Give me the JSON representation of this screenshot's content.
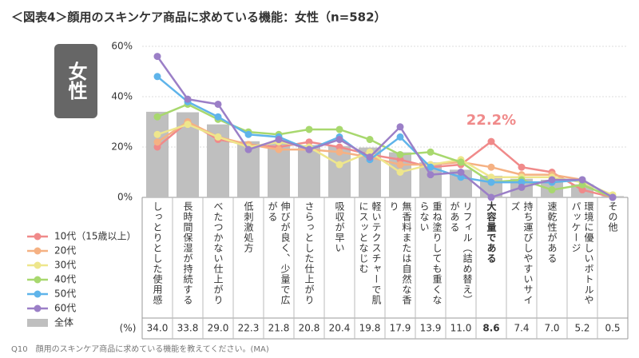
{
  "chart_data": {
    "type": "bar_line",
    "title": "＜図表4＞顔用のスキンケア商品に求めている機能：女性（n=582）",
    "badge": "女性",
    "unit_label": "(%)",
    "footnote": "Q10　顔用のスキンケア商品に求めている機能を教えてください。(MA)",
    "categories": [
      "しっとりとした使用感",
      "長時間保湿が持続する",
      "べたつかない仕上がり",
      "低刺激処方",
      "伸びが良く、少量で広がる",
      "さらっとした仕上がり",
      "吸収が早い",
      "軽いテクスチャーで肌にスッとなじむ",
      "無香料または自然な香り",
      "重ね塗りしても重くならない",
      "リフィル（詰め替え）がある",
      "大容量である",
      "持ち運びしやすいサイズ",
      "速乾性がある",
      "環境に優しいボトルやパッケージ",
      "その他"
    ],
    "bar": {
      "name": "全体",
      "color": "#bfbfbf",
      "values": [
        34.0,
        33.8,
        29.0,
        22.3,
        21.8,
        20.8,
        20.4,
        19.8,
        17.9,
        13.9,
        11.0,
        8.6,
        7.4,
        7.0,
        5.2,
        0.5
      ],
      "value_labels": [
        "34.0",
        "33.8",
        "29.0",
        "22.3",
        "21.8",
        "20.8",
        "20.4",
        "19.8",
        "17.9",
        "13.9",
        "11.0",
        "8.6",
        "7.4",
        "7.0",
        "5.2",
        "0.5"
      ]
    },
    "series": [
      {
        "name": "10代（15歳以上）",
        "color": "#f08a8a",
        "values": [
          20,
          30,
          23,
          21,
          20,
          22,
          20,
          17,
          15,
          12,
          13,
          22.2,
          12,
          10,
          3,
          0
        ]
      },
      {
        "name": "20代",
        "color": "#f5b183",
        "values": [
          22,
          30,
          24,
          21,
          19,
          19,
          18,
          16,
          13,
          13,
          14,
          12,
          9,
          9,
          7,
          0
        ]
      },
      {
        "name": "30代",
        "color": "#eee68c",
        "values": [
          25,
          29,
          24,
          20,
          22,
          20,
          13,
          18,
          10,
          13,
          15,
          8,
          8,
          8,
          6,
          1
        ]
      },
      {
        "name": "40代",
        "color": "#a8d86e",
        "values": [
          32,
          37,
          31,
          26,
          25,
          27,
          27,
          23,
          17,
          18,
          14,
          6,
          7,
          3,
          5,
          0
        ]
      },
      {
        "name": "50代",
        "color": "#5fb4ea",
        "values": [
          48,
          38,
          32,
          25,
          24,
          19,
          24,
          15,
          24,
          12,
          8,
          6,
          6,
          6,
          7,
          0
        ]
      },
      {
        "name": "60代",
        "color": "#9b7fc7",
        "values": [
          56,
          39,
          37,
          19,
          23,
          19,
          23,
          16,
          28,
          9,
          10,
          0,
          4,
          7,
          7,
          0
        ]
      }
    ],
    "annotation": {
      "text": "22.2%",
      "category": "大容量である",
      "series": "10代（15歳以上）",
      "color": "#f08a8a"
    },
    "ylim": [
      0,
      60
    ],
    "yticks": [
      {
        "value": 0,
        "label": "0%"
      },
      {
        "value": 20,
        "label": "20%"
      },
      {
        "value": 40,
        "label": "40%"
      },
      {
        "value": 60,
        "label": "60%"
      }
    ],
    "grid": true
  }
}
